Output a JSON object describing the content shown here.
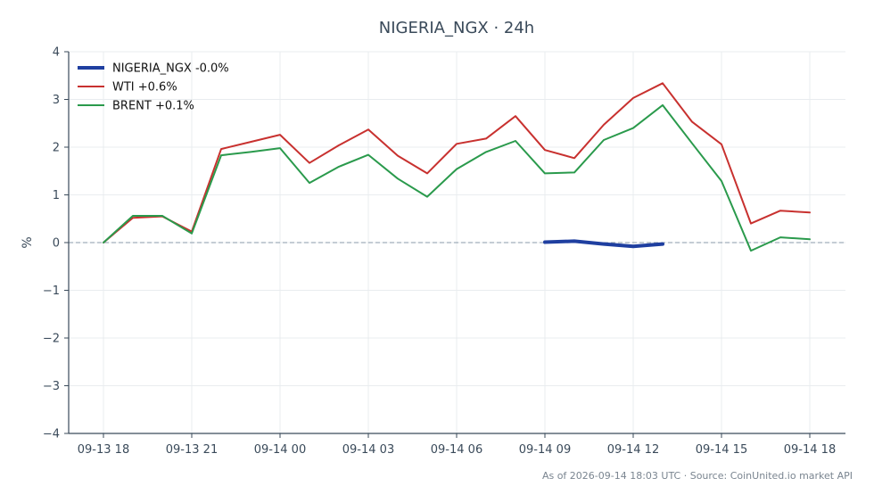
{
  "chart_data": {
    "type": "line",
    "title": "NIGERIA_NGX · 24h",
    "ylabel": "%",
    "xlabel": "",
    "ylim": [
      -4,
      4
    ],
    "yticks": [
      4,
      3,
      2,
      1,
      0,
      -1,
      -2,
      -3,
      -4
    ],
    "ytick_labels": [
      "4",
      "3",
      "2",
      "1",
      "0",
      "−1",
      "−2",
      "−3",
      "−4"
    ],
    "x": [
      "09-13 18:00",
      "09-13 19:00",
      "09-13 20:00",
      "09-13 21:00",
      "09-13 22:00",
      "09-13 23:00",
      "09-14 00:00",
      "09-14 01:00",
      "09-14 02:00",
      "09-14 03:00",
      "09-14 04:00",
      "09-14 05:00",
      "09-14 06:00",
      "09-14 07:00",
      "09-14 08:00",
      "09-14 09:00",
      "09-14 10:00",
      "09-14 11:00",
      "09-14 12:00",
      "09-14 13:00",
      "09-14 14:00",
      "09-14 15:00",
      "09-14 16:00",
      "09-14 17:00",
      "09-14 18:00"
    ],
    "xticks": [
      "09-13 18:00",
      "09-13 21:00",
      "09-14 00:00",
      "09-14 03:00",
      "09-14 06:00",
      "09-14 09:00",
      "09-14 12:00",
      "09-14 15:00",
      "09-14 18:00"
    ],
    "xtick_labels": [
      "09-13 18",
      "09-13 21",
      "09-14 00",
      "09-14 03",
      "09-14 06",
      "09-14 09",
      "09-14 12",
      "09-14 15",
      "09-14 18"
    ],
    "series": [
      {
        "name": "NIGERIA_NGX",
        "legend_label": "NIGERIA_NGX -0.0%",
        "color": "#1f3fa0",
        "width": 4,
        "values": [
          null,
          null,
          null,
          null,
          null,
          null,
          null,
          null,
          null,
          null,
          null,
          null,
          null,
          null,
          null,
          0.01,
          0.03,
          -0.03,
          -0.08,
          -0.03,
          null,
          null,
          null,
          null,
          null
        ]
      },
      {
        "name": "WTI",
        "legend_label": "WTI +0.6%",
        "color": "#c8312f",
        "width": 2,
        "values": [
          0,
          0.52,
          0.55,
          0.23,
          1.96,
          2.11,
          2.26,
          1.67,
          2.04,
          2.37,
          1.82,
          1.45,
          2.07,
          2.18,
          2.65,
          1.94,
          1.77,
          2.47,
          3.03,
          3.34,
          2.53,
          2.06,
          0.4,
          0.67,
          0.63
        ]
      },
      {
        "name": "BRENT",
        "legend_label": "BRENT +0.1%",
        "color": "#2a9a4c",
        "width": 2,
        "values": [
          0,
          0.56,
          0.56,
          0.19,
          1.83,
          1.9,
          1.98,
          1.25,
          1.59,
          1.84,
          1.34,
          0.96,
          1.54,
          1.9,
          2.13,
          1.45,
          1.47,
          2.15,
          2.4,
          2.88,
          2.08,
          1.29,
          -0.17,
          0.11,
          0.07
        ]
      }
    ],
    "zero_line": true,
    "grid": true,
    "legend_position": "top-left",
    "footer": "As of 2026-09-14 18:03 UTC · Source: CoinUnited.io market API"
  }
}
